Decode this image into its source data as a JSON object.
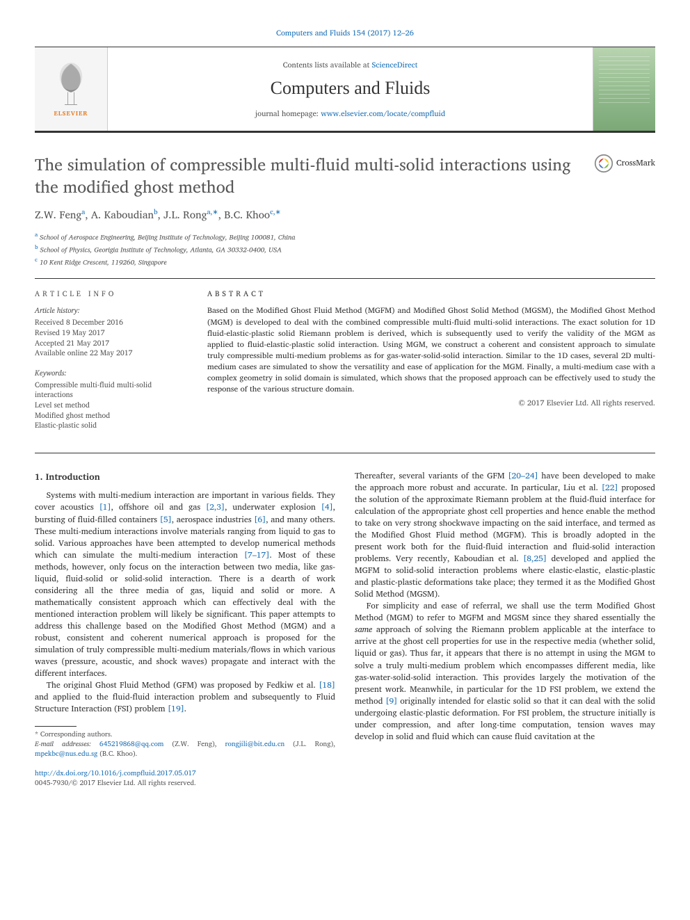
{
  "colors": {
    "link": "#1a6fb5",
    "text": "#333333",
    "muted": "#555555",
    "elsevier_orange": "#e67817",
    "cover_gradient_top": "#b8d4b0",
    "cover_gradient_bottom": "#7ca878"
  },
  "typography": {
    "body_font": "Georgia / Times New Roman serif",
    "title_fontsize": 24,
    "journal_name_fontsize": 26,
    "body_fontsize": 12,
    "abstract_fontsize": 11.5,
    "info_fontsize": 10.5,
    "footnote_fontsize": 10
  },
  "header": {
    "top_link": "Computers and Fluids 154 (2017) 12–26",
    "contents_prefix": "Contents lists available at ",
    "contents_link": "ScienceDirect",
    "journal_name": "Computers and Fluids",
    "homepage_prefix": "journal homepage: ",
    "homepage_link": "www.elsevier.com/locate/compfluid",
    "publisher_logo": "ELSEVIER",
    "cover_caption": "computers & fluids"
  },
  "crossmark_label": "CrossMark",
  "article_title": "The simulation of compressible multi-fluid multi-solid interactions using the modified ghost method",
  "authors_html": "Z.W. Feng<sup>a</sup>, A. Kaboudian<sup>b</sup>, J.L. Rong<sup>a,*</sup>, B.C. Khoo<sup>c,*</sup>",
  "affiliations": [
    {
      "sup": "a",
      "text": "School of Aerospace Engineering, Beijing Institute of Technology, Beijing 100081, China"
    },
    {
      "sup": "b",
      "text": "School of Physics, Georigia Institute of Technology, Atlanta, GA 30332-0400, USA"
    },
    {
      "sup": "c",
      "text": "10 Kent Ridge Crescent, 119260, Singapore"
    }
  ],
  "article_info": {
    "heading": "ARTICLE INFO",
    "history_label": "Article history:",
    "history": [
      "Received 8 December 2016",
      "Revised 19 May 2017",
      "Accepted 21 May 2017",
      "Available online 22 May 2017"
    ],
    "keywords_label": "Keywords:",
    "keywords": [
      "Compressible multi-fluid multi-solid interactions",
      "Level set method",
      "Modified ghost method",
      "Elastic-plastic solid"
    ]
  },
  "abstract": {
    "heading": "ABSTRACT",
    "text": "Based on the Modified Ghost Fluid Method (MGFM) and Modified Ghost Solid Method (MGSM), the Modified Ghost Method (MGM) is developed to deal with the combined compressible multi-fluid multi-solid interactions. The exact solution for 1D fluid-elastic-plastic solid Riemann problem is derived, which is subsequently used to verify the validity of the MGM as applied to fluid-elastic-plastic solid interaction. Using MGM, we construct a coherent and consistent approach to simulate truly compressible multi-medium problems as for gas-water-solid-solid interaction. Similar to the 1D cases, several 2D multi-medium cases are simulated to show the versatility and ease of application for the MGM. Finally, a multi-medium case with a complex geometry in solid domain is simulated, which shows that the proposed approach can be effectively used to study the response of the various structure domain.",
    "copyright": "© 2017 Elsevier Ltd. All rights reserved."
  },
  "section1_heading": "1. Introduction",
  "col_left": {
    "p1_a": "Systems with multi-medium interaction are important in various fields. They cover acoustics ",
    "r1": "[1]",
    "p1_b": ", offshore oil and gas ",
    "r2": "[2,3]",
    "p1_c": ", underwater explosion ",
    "r3": "[4]",
    "p1_d": ", bursting of fluid-filled containers ",
    "r4": "[5]",
    "p1_e": ", aerospace industries ",
    "r5": "[6]",
    "p1_f": ", and many others. These multi-medium interactions involve materials ranging from liquid to gas to solid. Various approaches have been attempted to develop numerical methods which can simulate the multi-medium interaction ",
    "r6": "[7–17]",
    "p1_g": ". Most of these methods, however, only focus on the interaction between two media, like gas-liquid, fluid-solid or solid-solid interaction. There is a dearth of work considering all the three media of gas, liquid and solid or more. A mathematically consistent approach which can effectively deal with the mentioned interaction problem will likely be significant. This paper attempts to address this challenge based on the Modified Ghost Method (MGM) and a robust, consistent and coherent numerical approach is proposed for the simulation of truly compressible multi-medium materials/flows in which various waves (pressure, acoustic, and shock waves) propagate and interact with the different interfaces.",
    "p2_a": "The original Ghost Fluid Method (GFM) was proposed by Fedkiw et al. ",
    "r7": "[18]",
    "p2_b": " and applied to the fluid-fluid interaction problem and subsequently to Fluid Structure Interaction (FSI) problem ",
    "r8": "[19]",
    "p2_c": "."
  },
  "col_right": {
    "p1_a": "Thereafter, several variants of the GFM ",
    "r1": "[20–24]",
    "p1_b": " have been developed to make the approach more robust and accurate. In particular, Liu et al. ",
    "r2": "[22]",
    "p1_c": " proposed the solution of the approximate Riemann problem at the fluid-fluid interface for calculation of the appropriate ghost cell properties and hence enable the method to take on very strong shockwave impacting on the said interface, and termed as the Modified Ghost Fluid method (MGFM). This is broadly adopted in the present work both for the fluid-fluid interaction and fluid-solid interaction problems. Very recently, Kaboudian et al. ",
    "r3": "[8,25]",
    "p1_d": " developed and applied the MGFM to solid-solid interaction problems where elastic-elastic, elastic-plastic and plastic-plastic deformations take place; they termed it as the Modified Ghost Solid Method (MGSM).",
    "p2_a": "For simplicity and ease of referral, we shall use the term Modified Ghost Method (MGM) to refer to MGFM and MGSM since they shared essentially the ",
    "p2_em": "same",
    "p2_b": " approach of solving the Riemann problem applicable at the interface to arrive at the ghost cell properties for use in the respective media (whether solid, liquid or gas). Thus far, it appears that there is no attempt in using the MGM to solve a truly multi-medium problem which encompasses different media, like gas-water-solid-solid interaction. This provides largely the motivation of the present work. Meanwhile, in particular for the 1D FSI problem, we extend the method ",
    "r4": "[9]",
    "p2_c": " originally intended for elastic solid so that it can deal with the solid undergoing elastic-plastic deformation. For FSI problem, the structure initially is under compression, and after long-time computation, tension waves may develop in solid and fluid which can cause fluid cavitation at the"
  },
  "footnotes": {
    "corresponding": "* Corresponding authors.",
    "email_label": "E-mail addresses: ",
    "e1": "645219868@qq.com",
    "n1": " (Z.W. Feng), ",
    "e2": "rongjili@bit.edu.cn",
    "n2": " (J.L. Rong), ",
    "e3": "mpekbc@nus.edu.sg",
    "n3": " (B.C. Khoo)."
  },
  "footer": {
    "doi": "http://dx.doi.org/10.1016/j.compfluid.2017.05.017",
    "issn": "0045-7930/© 2017 Elsevier Ltd. All rights reserved."
  }
}
